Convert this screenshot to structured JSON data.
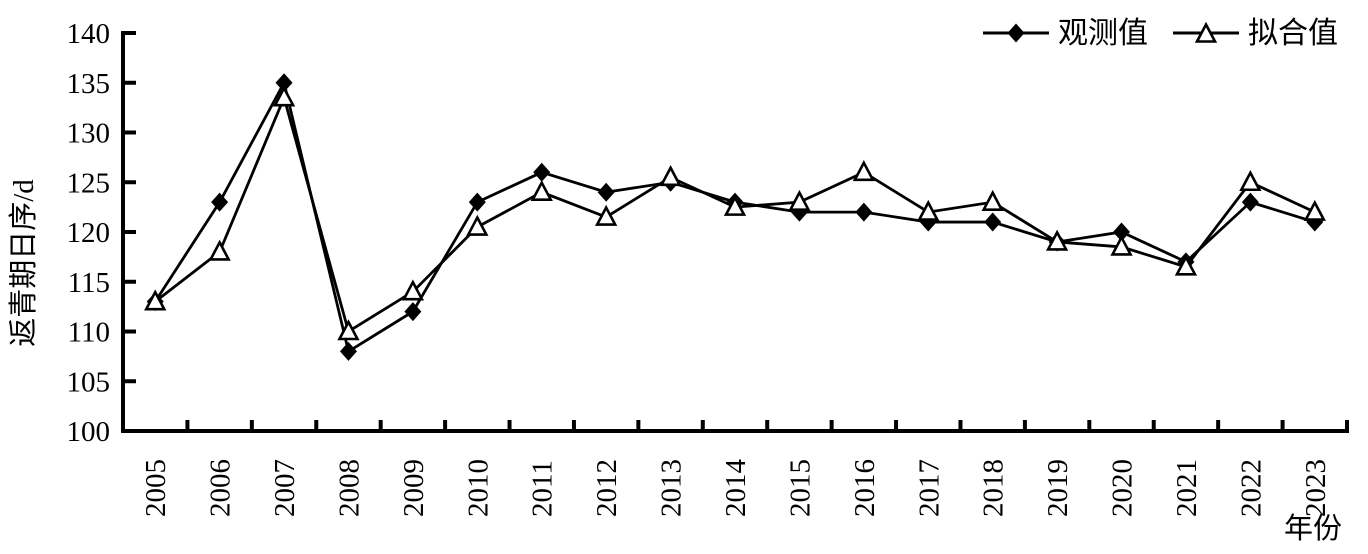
{
  "chart_data": {
    "type": "line",
    "title": "",
    "xlabel": "年份",
    "ylabel": "返青期日序/d",
    "ylim": [
      100,
      140
    ],
    "yticks": [
      100,
      105,
      110,
      115,
      120,
      125,
      130,
      135,
      140
    ],
    "categories": [
      "2005",
      "2006",
      "2007",
      "2008",
      "2009",
      "2010",
      "2011",
      "2012",
      "2013",
      "2014",
      "2015",
      "2016",
      "2017",
      "2018",
      "2019",
      "2020",
      "2021",
      "2022",
      "2023"
    ],
    "series": [
      {
        "name": "观测值",
        "marker": "filled-diamond",
        "color": "#000000",
        "values": [
          113,
          123,
          135,
          108,
          112,
          123,
          126,
          124,
          125,
          123,
          122,
          122,
          121,
          121,
          119,
          120,
          117,
          123,
          121
        ]
      },
      {
        "name": "拟合值",
        "marker": "open-triangle",
        "color": "#000000",
        "values": [
          113,
          118,
          133.5,
          110,
          114,
          120.5,
          124,
          121.5,
          125.5,
          122.5,
          123,
          126,
          122,
          123,
          119,
          118.5,
          116.5,
          125,
          122
        ]
      }
    ],
    "legend_position": "top-right",
    "grid": false,
    "axis_color": "#000000",
    "background": "#ffffff"
  }
}
